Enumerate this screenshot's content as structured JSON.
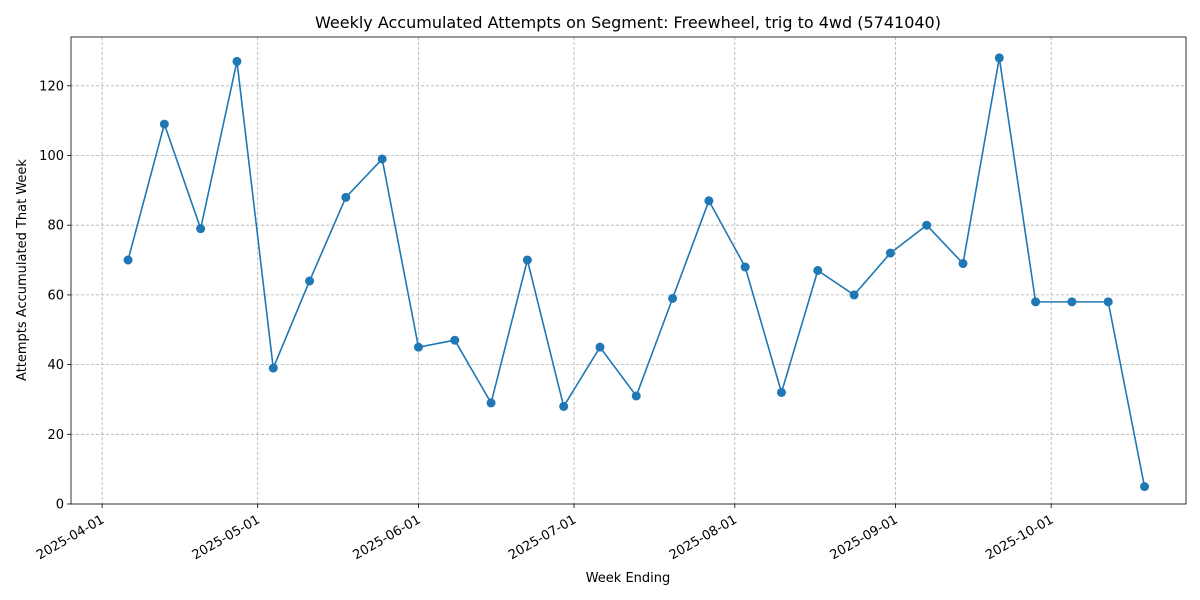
{
  "chart_data": {
    "type": "line",
    "title": "Weekly Accumulated Attempts on Segment: Freewheel, trig to 4wd (5741040)",
    "xlabel": "Week Ending",
    "ylabel": "Attempts Accumulated That Week",
    "x_tick_labels": [
      "2025-04-01",
      "2025-05-01",
      "2025-06-01",
      "2025-07-01",
      "2025-08-01",
      "2025-09-01",
      "2025-10-01"
    ],
    "y_tick_labels": [
      "0",
      "20",
      "40",
      "60",
      "80",
      "100",
      "120"
    ],
    "ylim": [
      0,
      134
    ],
    "xlim": [
      "2025-03-26",
      "2025-10-27"
    ],
    "grid": true,
    "line_color": "#1f77b4",
    "marker": "circle",
    "series": [
      {
        "x": [
          "2025-04-06",
          "2025-04-13",
          "2025-04-20",
          "2025-04-27",
          "2025-05-04",
          "2025-05-11",
          "2025-05-18",
          "2025-05-25",
          "2025-06-01",
          "2025-06-08",
          "2025-06-15",
          "2025-06-22",
          "2025-06-29",
          "2025-07-06",
          "2025-07-13",
          "2025-07-20",
          "2025-07-27",
          "2025-08-03",
          "2025-08-10",
          "2025-08-17",
          "2025-08-24",
          "2025-08-31",
          "2025-09-07",
          "2025-09-14",
          "2025-09-21",
          "2025-09-28",
          "2025-10-05",
          "2025-10-12",
          "2025-10-19"
        ],
        "values": [
          70,
          109,
          79,
          127,
          39,
          64,
          88,
          99,
          45,
          47,
          29,
          70,
          28,
          45,
          31,
          59,
          87,
          68,
          32,
          67,
          60,
          72,
          80,
          69,
          128,
          58,
          58,
          58,
          5
        ]
      }
    ]
  }
}
